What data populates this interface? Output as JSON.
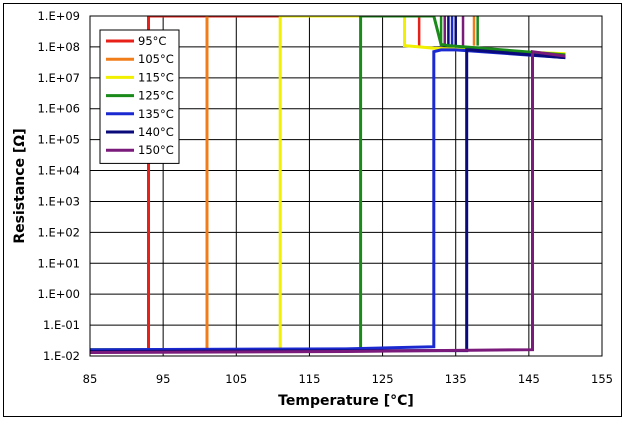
{
  "chart_data": {
    "type": "line",
    "title": "",
    "xlabel": "Temperature [°C]",
    "ylabel": "Resistance [Ω]",
    "xlim": [
      85,
      155
    ],
    "ylim_log10": [
      -2,
      9
    ],
    "y_scale": "log",
    "x_ticks": [
      "85",
      "95",
      "105",
      "115",
      "125",
      "135",
      "145",
      "155"
    ],
    "y_ticks": [
      "1.E-02",
      "1.E-01",
      "1.E+00",
      "1.E+01",
      "1.E+02",
      "1.E+03",
      "1.E+04",
      "1.E+05",
      "1.E+06",
      "1.E+07",
      "1.E+08",
      "1.E+09"
    ],
    "grid": true,
    "legend_position": "top-left",
    "series": [
      {
        "name": "95°C",
        "color": "#e8201a",
        "x": [
          85,
          93,
          93,
          93,
          130
        ],
        "y": [
          0.014,
          0.014,
          0.014,
          1000000000.0,
          1000000000.0
        ]
      },
      {
        "name": "105°C",
        "color": "#f07d1a",
        "x": [
          85,
          101,
          101
        ],
        "y": [
          0.015,
          0.015,
          1000000000.0
        ]
      },
      {
        "name": "115°C",
        "color": "#f0f000",
        "x": [
          85,
          111,
          111,
          111,
          128,
          128,
          130,
          132,
          150
        ],
        "y": [
          0.016,
          0.016,
          0.016,
          1000000000.0,
          1000000000.0,
          110000000.0,
          100000000.0,
          90000000.0,
          60000000.0
        ]
      },
      {
        "name": "125°C",
        "color": "#1a8a1a",
        "x": [
          85,
          122,
          122,
          122,
          122,
          132,
          133,
          134,
          150
        ],
        "y": [
          0.016,
          0.016,
          10,
          10,
          1000000000.0,
          1000000000.0,
          120000000.0,
          110000000.0,
          55000000.0
        ]
      },
      {
        "name": "135°C",
        "color": "#1a2ad0",
        "x": [
          85,
          120,
          132,
          132,
          132,
          133,
          135,
          150
        ],
        "y": [
          0.016,
          0.017,
          0.02,
          1.0,
          70000000.0,
          80000000.0,
          80000000.0,
          45000000.0
        ]
      },
      {
        "name": "140°C",
        "color": "#0a0a7a",
        "x": [
          85,
          130,
          136.5,
          136.5,
          136.5,
          137,
          150
        ],
        "y": [
          0.014,
          0.015,
          0.015,
          0.016,
          80000000.0,
          80000000.0,
          45000000.0
        ]
      },
      {
        "name": "150°C",
        "color": "#7a1a7a",
        "x": [
          85,
          120,
          145.5,
          145.5,
          145.5,
          150
        ],
        "y": [
          0.013,
          0.014,
          0.016,
          0.016,
          70000000.0,
          50000000.0
        ]
      }
    ],
    "spikes": [
      {
        "color": "#e8201a",
        "x": 130
      },
      {
        "color": "#f0f000",
        "x": 128
      },
      {
        "color": "#1a8a1a",
        "x": 133
      },
      {
        "color": "#1a8a1a",
        "x": 138
      },
      {
        "color": "#1a2ad0",
        "x": 134.5
      },
      {
        "color": "#0a0a7a",
        "x": 134
      },
      {
        "color": "#0a0a7a",
        "x": 135
      },
      {
        "color": "#7a1a7a",
        "x": 133.5
      },
      {
        "color": "#7a1a7a",
        "x": 136
      },
      {
        "color": "#f07d1a",
        "x": 137.5
      }
    ]
  }
}
